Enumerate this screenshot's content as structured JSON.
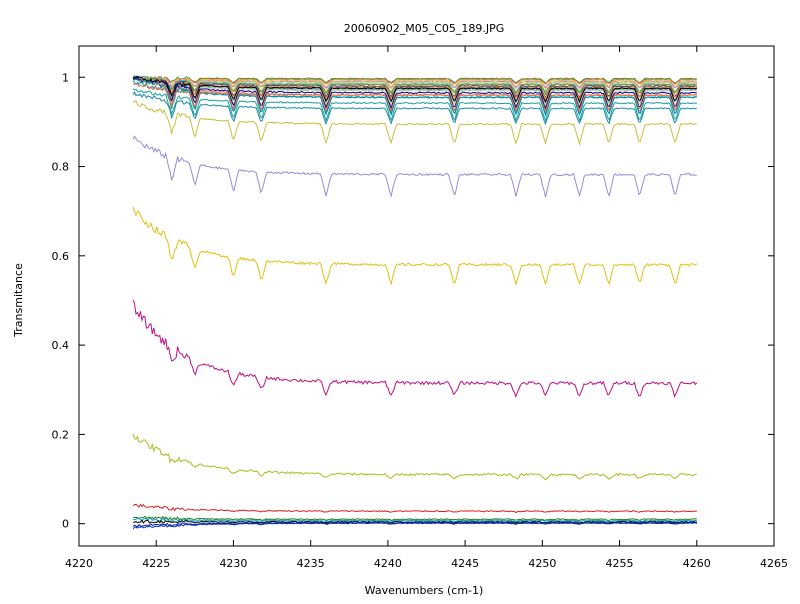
{
  "chart_data": {
    "type": "line",
    "title": "20060902_M05_C05_189.JPG",
    "xlabel": "Wavenumbers (cm-1)",
    "ylabel": "Transmitance",
    "xlim": [
      4220,
      4265
    ],
    "ylim": [
      -0.05,
      1.07
    ],
    "xticks": [
      4220,
      4225,
      4230,
      4235,
      4240,
      4245,
      4250,
      4255,
      4260,
      4265
    ],
    "yticks": [
      0,
      0.2,
      0.4,
      0.6,
      0.8,
      1
    ],
    "x_start": 4223.5,
    "x_end": 4260,
    "absorption_lines": [
      4226,
      4227.5,
      4230,
      4231.8,
      4236,
      4240.2,
      4244.3,
      4248.3,
      4250.2,
      4252.4,
      4254.3,
      4256.3,
      4258.6
    ],
    "grid": false,
    "legend": "none",
    "series": [
      {
        "start": 1.0,
        "base": 0.997,
        "depth": 0.01,
        "color": "#1fa51f"
      },
      {
        "start": 1.0,
        "base": 0.995,
        "depth": 0.01,
        "color": "#e05a5a"
      },
      {
        "start": 1.0,
        "base": 0.993,
        "depth": 0.015,
        "color": "#e7c52d"
      },
      {
        "start": 1.0,
        "base": 0.99,
        "depth": 0.015,
        "color": "#c47ad1"
      },
      {
        "start": 1.0,
        "base": 0.988,
        "depth": 0.02,
        "color": "#d4d44a"
      },
      {
        "start": 1.0,
        "base": 0.985,
        "depth": 0.02,
        "color": "#3ac2e8"
      },
      {
        "start": 1.0,
        "base": 0.983,
        "depth": 0.02,
        "color": "#8a8a1a"
      },
      {
        "start": 1.0,
        "base": 0.98,
        "depth": 0.025,
        "color": "#27408b"
      },
      {
        "start": 1.0,
        "base": 0.977,
        "depth": 0.025,
        "color": "#ff8c1a"
      },
      {
        "start": 1.0,
        "base": 0.975,
        "depth": 0.03,
        "color": "#7b2fbe"
      },
      {
        "start": 1.0,
        "base": 0.972,
        "depth": 0.03,
        "color": "#55c27a"
      },
      {
        "start": 1.0,
        "base": 0.97,
        "depth": 0.035,
        "color": "#c0c0c0"
      },
      {
        "start": 1.0,
        "base": 0.965,
        "depth": 0.035,
        "color": "#000080"
      },
      {
        "start": 1.0,
        "base": 0.96,
        "depth": 0.04,
        "color": "#e87070"
      },
      {
        "start": 1.0,
        "base": 0.955,
        "depth": 0.04,
        "color": "#00a0a0"
      },
      {
        "start": 1.0,
        "base": 0.975,
        "depth": 0.03,
        "color": "#000000"
      },
      {
        "start": 0.99,
        "base": 0.955,
        "depth": 0.04,
        "color": "#0090b0"
      },
      {
        "start": 0.985,
        "base": 0.96,
        "depth": 0.035,
        "color": "#e87040"
      },
      {
        "start": 0.975,
        "base": 0.942,
        "depth": 0.04,
        "color": "#1aa0a0"
      },
      {
        "start": 0.965,
        "base": 0.93,
        "depth": 0.035,
        "color": "#1a8fa0"
      },
      {
        "start": 0.945,
        "base": 0.895,
        "depth": 0.045,
        "color": "#c8c03a"
      },
      {
        "start": 0.865,
        "base": 0.782,
        "depth": 0.05,
        "color": "#9a8ad8"
      },
      {
        "start": 0.705,
        "base": 0.58,
        "depth": 0.045,
        "color": "#e0c010"
      },
      {
        "start": 0.49,
        "base": 0.315,
        "depth": 0.03,
        "color": "#c01080"
      },
      {
        "start": 0.2,
        "base": 0.11,
        "depth": 0.01,
        "color": "#a0c020"
      },
      {
        "start": 0.042,
        "base": 0.028,
        "depth": 0.002,
        "color": "#e02020"
      },
      {
        "start": 0.015,
        "base": 0.01,
        "depth": 0.002,
        "color": "#208020"
      },
      {
        "start": 0.01,
        "base": 0.007,
        "depth": 0.002,
        "color": "#00a0c0"
      },
      {
        "start": 0.005,
        "base": 0.004,
        "depth": 0.002,
        "color": "#000000"
      },
      {
        "start": -0.005,
        "base": 0.002,
        "depth": 0.002,
        "color": "#1020a0"
      },
      {
        "start": -0.01,
        "base": 0.001,
        "depth": 0.002,
        "color": "#0030c0"
      }
    ]
  }
}
